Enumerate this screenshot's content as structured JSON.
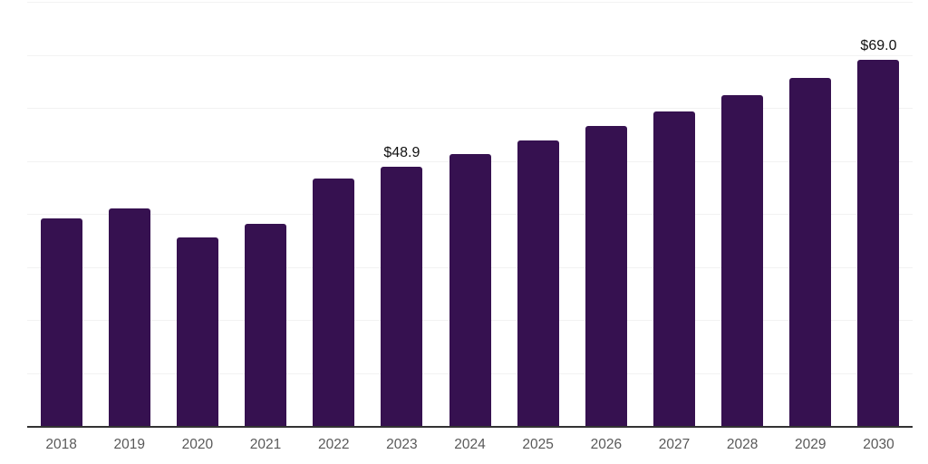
{
  "chart_data": {
    "type": "bar",
    "categories": [
      "2018",
      "2019",
      "2020",
      "2021",
      "2022",
      "2023",
      "2024",
      "2025",
      "2026",
      "2027",
      "2028",
      "2029",
      "2030"
    ],
    "values": [
      39.2,
      41.0,
      35.6,
      38.2,
      46.6,
      48.9,
      51.3,
      53.9,
      56.6,
      59.4,
      62.4,
      65.6,
      69.0
    ],
    "data_labels": [
      {
        "category": "2023",
        "text": "$48.9"
      },
      {
        "category": "2030",
        "text": "$69.0"
      }
    ],
    "title": "",
    "xlabel": "",
    "ylabel": "",
    "ylim": [
      0,
      80
    ],
    "grid": true,
    "grid_step": 10,
    "legend": false
  },
  "style": {
    "bar_color": "#361150",
    "grid_color": "#f2f2f2",
    "axis_color": "#333333",
    "tick_label_color": "#595959",
    "data_label_color": "#111111",
    "background": "#ffffff"
  }
}
